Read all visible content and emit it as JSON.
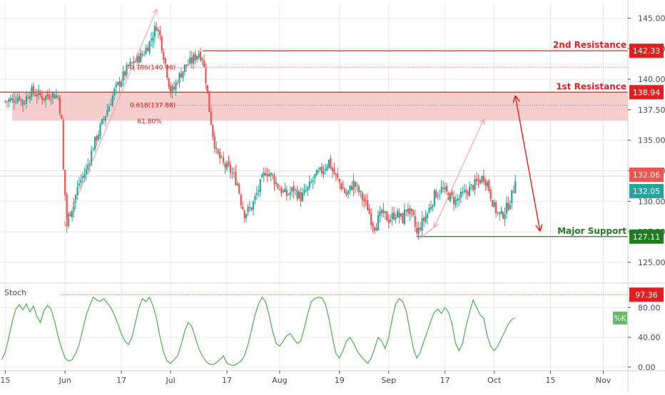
{
  "chart_data": {
    "type": "candlestick",
    "title": "",
    "x_tick_labels": [
      "15",
      "Jun",
      "17",
      "Jul",
      "17",
      "Aug",
      "19",
      "Sep",
      "17",
      "Oct",
      "15",
      "Nov"
    ],
    "x_tick_days": [
      15,
      32,
      48,
      62,
      78,
      93,
      110,
      124,
      140,
      154,
      170,
      185
    ],
    "y_ticks": [
      "125.00",
      "127.50",
      "130.00",
      "132.50",
      "135.00",
      "137.50",
      "140.00",
      "142.50",
      "145.00"
    ],
    "y_tick_values": [
      125,
      127.5,
      130,
      132.5,
      135,
      137.5,
      140,
      142.5,
      145
    ],
    "ylim": [
      123.3,
      146.2
    ],
    "xlim": [
      13.5,
      192
    ],
    "ohlc_path": [
      [
        15,
        138.2
      ],
      [
        17,
        138.3
      ],
      [
        19,
        138.6
      ],
      [
        20,
        138.0
      ],
      [
        22,
        139.0
      ],
      [
        24,
        138.8
      ],
      [
        26,
        138.5
      ],
      [
        28,
        138.8
      ],
      [
        30,
        138.6
      ],
      [
        31,
        136.5
      ],
      [
        31.5,
        132.5
      ],
      [
        32,
        130.5
      ],
      [
        32.5,
        128.0
      ],
      [
        33,
        128.8
      ],
      [
        34,
        129.5
      ],
      [
        35,
        130.5
      ],
      [
        36,
        131.5
      ],
      [
        38,
        132.5
      ],
      [
        40,
        134.5
      ],
      [
        42,
        136.0
      ],
      [
        44,
        137.5
      ],
      [
        46,
        139.0
      ],
      [
        48,
        140.0
      ],
      [
        50,
        141.0
      ],
      [
        52,
        141.5
      ],
      [
        54,
        142.0
      ],
      [
        56,
        143.0
      ],
      [
        58,
        144.4
      ],
      [
        59,
        143.5
      ],
      [
        60,
        142.0
      ],
      [
        61,
        140.5
      ],
      [
        62,
        139.0
      ],
      [
        63,
        139.2
      ],
      [
        64,
        140.0
      ],
      [
        66,
        141.0
      ],
      [
        68,
        141.5
      ],
      [
        70,
        142.2
      ],
      [
        71,
        141.8
      ],
      [
        72,
        140.0
      ],
      [
        73,
        137.5
      ],
      [
        74,
        135.5
      ],
      [
        75,
        134.0
      ],
      [
        77,
        133.0
      ],
      [
        79,
        132.5
      ],
      [
        81,
        131.5
      ],
      [
        82,
        130.0
      ],
      [
        83,
        129.0
      ],
      [
        85,
        129.5
      ],
      [
        87,
        131.0
      ],
      [
        89,
        132.5
      ],
      [
        91,
        132.0
      ],
      [
        93,
        131.0
      ],
      [
        95,
        130.5
      ],
      [
        97,
        131.0
      ],
      [
        99,
        130.3
      ],
      [
        101,
        131.0
      ],
      [
        103,
        132.0
      ],
      [
        105,
        132.5
      ],
      [
        107,
        133.3
      ],
      [
        108,
        132.5
      ],
      [
        110,
        131.5
      ],
      [
        112,
        130.5
      ],
      [
        114,
        131.5
      ],
      [
        116,
        130.5
      ],
      [
        118,
        129.5
      ],
      [
        119,
        128.5
      ],
      [
        120,
        128.0
      ],
      [
        122,
        129.0
      ],
      [
        124,
        128.5
      ],
      [
        126,
        129.0
      ],
      [
        128,
        128.5
      ],
      [
        129,
        129.5
      ],
      [
        131,
        128.5
      ],
      [
        132,
        127.3
      ],
      [
        133,
        128.0
      ],
      [
        135,
        129.0
      ],
      [
        137,
        130.5
      ],
      [
        139,
        131.0
      ],
      [
        141,
        130.5
      ],
      [
        143,
        130.0
      ],
      [
        145,
        130.5
      ],
      [
        147,
        131.0
      ],
      [
        149,
        131.5
      ],
      [
        151,
        132.0
      ],
      [
        152,
        131.5
      ],
      [
        153,
        130.5
      ],
      [
        154,
        129.5
      ],
      [
        155,
        129.0
      ],
      [
        156,
        128.8
      ],
      [
        157,
        129.2
      ],
      [
        158,
        129.7
      ],
      [
        159,
        130.5
      ],
      [
        159.5,
        131.0
      ],
      [
        160,
        132.06
      ]
    ],
    "stoch_k": [
      [
        14,
        10
      ],
      [
        15,
        20
      ],
      [
        16,
        40
      ],
      [
        17,
        62
      ],
      [
        18,
        78
      ],
      [
        19,
        84
      ],
      [
        20,
        77
      ],
      [
        21,
        85
      ],
      [
        22,
        74
      ],
      [
        23,
        82
      ],
      [
        24,
        68
      ],
      [
        25,
        60
      ],
      [
        26,
        76
      ],
      [
        27,
        83
      ],
      [
        28,
        78
      ],
      [
        29,
        62
      ],
      [
        30,
        42
      ],
      [
        31,
        25
      ],
      [
        32,
        12
      ],
      [
        33,
        8
      ],
      [
        34,
        10
      ],
      [
        35,
        18
      ],
      [
        36,
        30
      ],
      [
        37,
        50
      ],
      [
        38,
        70
      ],
      [
        39,
        82
      ],
      [
        40,
        94
      ],
      [
        41,
        90
      ],
      [
        42,
        88
      ],
      [
        43,
        92
      ],
      [
        44,
        86
      ],
      [
        45,
        80
      ],
      [
        46,
        70
      ],
      [
        47,
        58
      ],
      [
        48,
        45
      ],
      [
        49,
        35
      ],
      [
        50,
        30
      ],
      [
        51,
        40
      ],
      [
        52,
        60
      ],
      [
        53,
        80
      ],
      [
        54,
        92
      ],
      [
        55,
        88
      ],
      [
        56,
        94
      ],
      [
        57,
        82
      ],
      [
        58,
        65
      ],
      [
        59,
        40
      ],
      [
        60,
        20
      ],
      [
        61,
        8
      ],
      [
        62,
        5
      ],
      [
        63,
        10
      ],
      [
        64,
        15
      ],
      [
        65,
        30
      ],
      [
        66,
        48
      ],
      [
        67,
        60
      ],
      [
        68,
        55
      ],
      [
        69,
        40
      ],
      [
        70,
        25
      ],
      [
        71,
        15
      ],
      [
        72,
        8
      ],
      [
        73,
        4
      ],
      [
        74,
        3
      ],
      [
        75,
        6
      ],
      [
        76,
        10
      ],
      [
        77,
        15
      ],
      [
        78,
        5
      ],
      [
        79,
        3
      ],
      [
        80,
        2
      ],
      [
        81,
        5
      ],
      [
        82,
        8
      ],
      [
        83,
        15
      ],
      [
        84,
        30
      ],
      [
        85,
        50
      ],
      [
        86,
        70
      ],
      [
        87,
        85
      ],
      [
        88,
        94
      ],
      [
        89,
        88
      ],
      [
        90,
        70
      ],
      [
        91,
        48
      ],
      [
        92,
        32
      ],
      [
        93,
        28
      ],
      [
        94,
        35
      ],
      [
        95,
        42
      ],
      [
        96,
        45
      ],
      [
        97,
        38
      ],
      [
        98,
        32
      ],
      [
        99,
        35
      ],
      [
        100,
        52
      ],
      [
        101,
        72
      ],
      [
        102,
        88
      ],
      [
        103,
        92
      ],
      [
        104,
        94
      ],
      [
        105,
        93
      ],
      [
        106,
        85
      ],
      [
        107,
        65
      ],
      [
        108,
        40
      ],
      [
        109,
        18
      ],
      [
        110,
        12
      ],
      [
        111,
        22
      ],
      [
        112,
        35
      ],
      [
        113,
        40
      ],
      [
        114,
        32
      ],
      [
        115,
        22
      ],
      [
        116,
        15
      ],
      [
        117,
        10
      ],
      [
        118,
        5
      ],
      [
        119,
        12
      ],
      [
        120,
        25
      ],
      [
        121,
        40
      ],
      [
        122,
        35
      ],
      [
        123,
        25
      ],
      [
        124,
        40
      ],
      [
        125,
        65
      ],
      [
        126,
        85
      ],
      [
        127,
        92
      ],
      [
        128,
        88
      ],
      [
        129,
        75
      ],
      [
        130,
        50
      ],
      [
        131,
        25
      ],
      [
        132,
        12
      ],
      [
        133,
        20
      ],
      [
        134,
        35
      ],
      [
        135,
        48
      ],
      [
        136,
        62
      ],
      [
        137,
        74
      ],
      [
        138,
        78
      ],
      [
        139,
        72
      ],
      [
        140,
        80
      ],
      [
        141,
        74
      ],
      [
        142,
        58
      ],
      [
        143,
        32
      ],
      [
        144,
        22
      ],
      [
        145,
        32
      ],
      [
        146,
        55
      ],
      [
        147,
        74
      ],
      [
        148,
        90
      ],
      [
        149,
        80
      ],
      [
        150,
        70
      ],
      [
        151,
        66
      ],
      [
        152,
        42
      ],
      [
        153,
        28
      ],
      [
        154,
        22
      ],
      [
        155,
        28
      ],
      [
        156,
        38
      ],
      [
        157,
        48
      ],
      [
        158,
        58
      ],
      [
        159,
        64
      ],
      [
        160,
        66
      ]
    ],
    "stoch_ylim": [
      -5,
      112
    ],
    "stoch_ticks": [
      "0.00",
      "40.00",
      "80.00"
    ],
    "stoch_tick_values": [
      0,
      40,
      80
    ],
    "stoch_label": "Stoch",
    "stoch_series_name": "%K",
    "stoch_high_line": 97.36,
    "stoch_high_label": "97.36",
    "last_price": 132.06,
    "last_price_label": "132.06",
    "last_price_2": 132.05,
    "last_price_2_label": "132.05",
    "levels": [
      {
        "name": "2nd Resistance",
        "value": 142.33,
        "label": "142.33",
        "color": "#e02020",
        "from_day": 71
      },
      {
        "name": "1st Resistance",
        "value": 138.94,
        "label": "138.94",
        "color": "#e02020",
        "from_day": 13.5
      },
      {
        "name": "Major Support",
        "value": 127.11,
        "label": "127.11",
        "color": "#1e7d1e",
        "from_day": 132
      }
    ],
    "zone": {
      "from_day": 17,
      "to_day": 192,
      "top": 138.94,
      "bottom": 136.6,
      "color": "#f6c5c5"
    },
    "fib_levels": [
      {
        "label": "0.786(140.98)",
        "value": 140.98,
        "from_day": 51,
        "to_day": 192
      },
      {
        "label": "0.618(137.88)",
        "value": 137.88,
        "from_day": 51,
        "to_day": 192
      }
    ],
    "fib_pct_label": "61.80%",
    "fib_pct_value": 136.4,
    "fib_pct_day": 56,
    "lines": [
      {
        "from": [
          32,
          128.0
        ],
        "to": [
          58,
          145.7
        ],
        "color": "#f19c9c"
      },
      {
        "from": [
          133,
          127.0
        ],
        "to": [
          137,
          127.9
        ],
        "color": "#f19c9c"
      },
      {
        "from": [
          137,
          127.9
        ],
        "to": [
          151,
          136.7
        ],
        "color": "#f19c9c"
      },
      {
        "from": [
          160,
          138.6
        ],
        "to": [
          167,
          127.6
        ],
        "color": "#e02020"
      }
    ],
    "colors": {
      "up": "#26a69a",
      "down": "#ef5350",
      "stoch": "#4caf50",
      "axis": "#4a4a4a",
      "grid": "#e8e8e8"
    }
  }
}
